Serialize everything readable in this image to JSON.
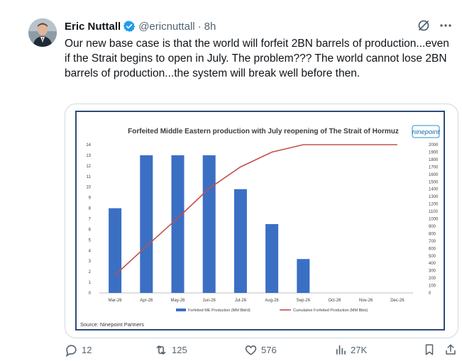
{
  "tweet": {
    "author_name": "Eric Nuttall",
    "handle": "@ericnuttall",
    "separator": "·",
    "time": "8h",
    "text": "Our new base case is that the world will forfeit 2BN barrels of production...even if the Strait begins to open in July. The problem??? The world cannot lose 2BN barrels of production...the system will break well before then.",
    "icons": {
      "avatar": "avatar",
      "verified": "verified-badge-icon",
      "grok": "grok-icon",
      "more": "more-icon"
    }
  },
  "actions": {
    "reply": {
      "icon": "reply-icon",
      "count": "12"
    },
    "retweet": {
      "icon": "retweet-icon",
      "count": "125"
    },
    "like": {
      "icon": "heart-icon",
      "count": "576"
    },
    "views": {
      "icon": "views-icon",
      "count": "27K"
    },
    "bookmark": {
      "icon": "bookmark-icon"
    },
    "share": {
      "icon": "share-icon"
    }
  },
  "chart_data": {
    "type": "bar",
    "title": "Forfeited Middle Eastern production with July reopening of The Strait of Hormuz",
    "logo_text": "ninepoint",
    "source": "Source: Ninepoint Partners",
    "categories": [
      "Mar-26",
      "Apr-26",
      "May-26",
      "Jun-26",
      "Jul-26",
      "Aug-26",
      "Sep-26",
      "Oct-26",
      "Nov-26",
      "Dec-26"
    ],
    "y_left": {
      "min": 0,
      "max": 14,
      "ticks": [
        "0",
        "1",
        "2",
        "3",
        "4",
        "5",
        "6",
        "7",
        "8",
        "9",
        "10",
        "11",
        "12",
        "13",
        "14"
      ]
    },
    "y_right": {
      "min": 0,
      "max": 2000,
      "ticks": [
        "0",
        "100",
        "200",
        "300",
        "400",
        "500",
        "600",
        "700",
        "800",
        "900",
        "1000",
        "1100",
        "1200",
        "1300",
        "1400",
        "1500",
        "1600",
        "1700",
        "1800",
        "1900",
        "2000"
      ]
    },
    "series": [
      {
        "name": "Forfeited ME Production (MM Bbl/d)",
        "kind": "bar",
        "axis": "left",
        "color": "#3a6fc4",
        "values": [
          8,
          13,
          13,
          13,
          9.8,
          6.5,
          3.2,
          0,
          0,
          0
        ]
      },
      {
        "name": "Cumulative Forfeited Production (MM Bbls)",
        "kind": "line",
        "axis": "right",
        "color": "#c0504d",
        "values": [
          240,
          630,
          1010,
          1410,
          1700,
          1900,
          2000,
          2000,
          2000,
          2000
        ]
      }
    ],
    "grid": false,
    "legend": "bottom"
  }
}
